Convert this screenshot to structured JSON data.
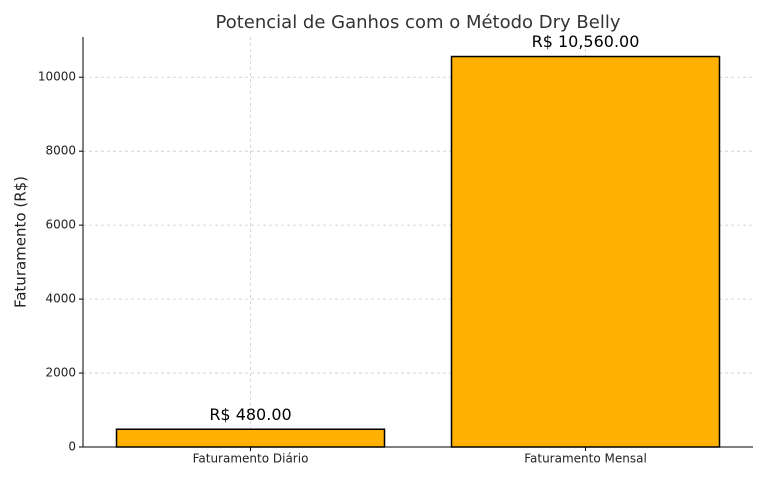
{
  "chart_data": {
    "type": "bar",
    "title": "Potencial de Ganhos com o Método Dry Belly",
    "ylabel": "Faturamento (R$)",
    "categories": [
      "Faturamento Diário",
      "Faturamento Mensal"
    ],
    "values": [
      480,
      10560
    ],
    "value_labels": [
      "R$ 480.00",
      "R$ 10,560.00"
    ],
    "color": "#ffb000",
    "edgecolor": "#000000",
    "ylim": [
      0,
      11088
    ],
    "yticks": [
      0,
      2000,
      4000,
      6000,
      8000,
      10000
    ],
    "grid": true
  }
}
